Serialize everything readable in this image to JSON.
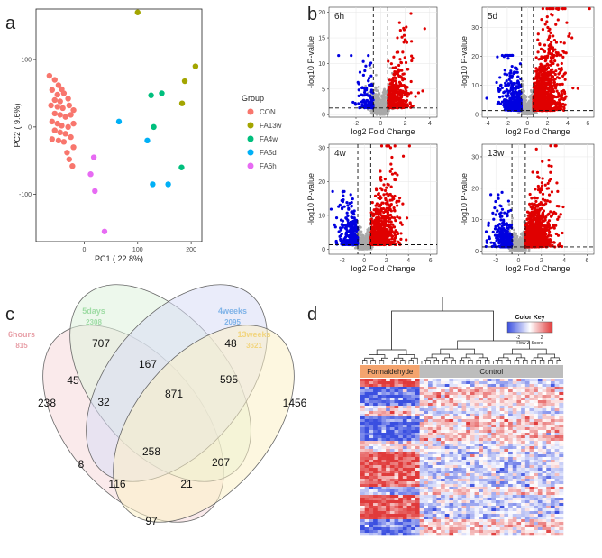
{
  "panel_letters": {
    "a": "a",
    "b": "b",
    "c": "c",
    "d": "d"
  },
  "chart_data": [
    {
      "type": "scatter",
      "panel": "a",
      "xlabel": "PC1 ( 22.8%)",
      "ylabel": "PC2 ( 9.6%)",
      "xlim": [
        -90,
        220
      ],
      "ylim": [
        -170,
        175
      ],
      "xticks": [
        "0",
        "100",
        "200"
      ],
      "xtick_values": [
        0,
        100,
        200
      ],
      "yticks": [
        "100",
        "0",
        "-100"
      ],
      "ytick_values": [
        100,
        0,
        -100
      ],
      "legend_title": "Group",
      "series": [
        {
          "name": "CON",
          "color": "#F8766D",
          "points": [
            [
              -65,
              76
            ],
            [
              -55,
              70
            ],
            [
              -48,
              62
            ],
            [
              -60,
              55
            ],
            [
              -42,
              56
            ],
            [
              -50,
              48
            ],
            [
              -38,
              50
            ],
            [
              -55,
              40
            ],
            [
              -45,
              38
            ],
            [
              -30,
              42
            ],
            [
              -62,
              32
            ],
            [
              -50,
              30
            ],
            [
              -40,
              28
            ],
            [
              -28,
              32
            ],
            [
              -20,
              25
            ],
            [
              -55,
              20
            ],
            [
              -45,
              18
            ],
            [
              -35,
              15
            ],
            [
              -25,
              18
            ],
            [
              -60,
              8
            ],
            [
              -50,
              5
            ],
            [
              -42,
              2
            ],
            [
              -30,
              0
            ],
            [
              -20,
              5
            ],
            [
              -55,
              -5
            ],
            [
              -45,
              -8
            ],
            [
              -35,
              -10
            ],
            [
              -60,
              -18
            ],
            [
              -48,
              -20
            ],
            [
              -38,
              -22
            ],
            [
              -25,
              -15
            ],
            [
              -20,
              -30
            ],
            [
              -32,
              -38
            ],
            [
              -28,
              -48
            ],
            [
              -22,
              -58
            ]
          ]
        },
        {
          "name": "FA13w",
          "color": "#A3A500",
          "points": [
            [
              100,
              170
            ],
            [
              208,
              90
            ],
            [
              188,
              68
            ],
            [
              183,
              35
            ]
          ]
        },
        {
          "name": "FA4w",
          "color": "#00BF7D",
          "points": [
            [
              125,
              47
            ],
            [
              145,
              50
            ],
            [
              130,
              0
            ],
            [
              182,
              -60
            ]
          ]
        },
        {
          "name": "FA5d",
          "color": "#00B0F6",
          "points": [
            [
              65,
              8
            ],
            [
              118,
              -20
            ],
            [
              128,
              -85
            ],
            [
              157,
              -85
            ]
          ]
        },
        {
          "name": "FA6h",
          "color": "#E76BF3",
          "points": [
            [
              18,
              -45
            ],
            [
              12,
              -70
            ],
            [
              20,
              -95
            ],
            [
              38,
              -155
            ]
          ]
        }
      ]
    },
    {
      "type": "scatter",
      "panel": "b",
      "title": "6h",
      "xlabel": "log2 Fold Change",
      "ylabel": "-log10 P-value",
      "xlim": [
        -4.2,
        4.6
      ],
      "ylim": [
        -0.5,
        21
      ],
      "xticks": [
        "-2",
        "0",
        "2",
        "4"
      ],
      "xtick_values": [
        -2,
        0,
        2,
        4
      ],
      "yticks": [
        "0",
        "5",
        "10",
        "15",
        "20"
      ],
      "ytick_values": [
        0,
        5,
        10,
        15,
        20
      ],
      "fc_cutoffs": [
        -0.585,
        0.585
      ],
      "p_cutoff": 1.3,
      "down_color": "#0000E0",
      "up_color": "#E00000",
      "ns_color": "#A9A9A9"
    },
    {
      "type": "scatter",
      "panel": "b",
      "title": "5d",
      "xlabel": "log2 Fold Change",
      "ylabel": "-log10 P-value",
      "xlim": [
        -4.5,
        6.6
      ],
      "ylim": [
        -1,
        37
      ],
      "xticks": [
        "-4",
        "-2",
        "0",
        "2",
        "4",
        "6"
      ],
      "xtick_values": [
        -4,
        -2,
        0,
        2,
        4,
        6
      ],
      "yticks": [
        "0",
        "10",
        "20",
        "30"
      ],
      "ytick_values": [
        0,
        10,
        20,
        30
      ],
      "fc_cutoffs": [
        -0.585,
        0.585
      ],
      "p_cutoff": 1.3,
      "down_color": "#0000E0",
      "up_color": "#E00000",
      "ns_color": "#A9A9A9"
    },
    {
      "type": "scatter",
      "panel": "b",
      "title": "4w",
      "xlabel": "log2 Fold Change",
      "ylabel": "-log10 P-value",
      "xlim": [
        -3.2,
        6.6
      ],
      "ylim": [
        -1.5,
        31
      ],
      "xticks": [
        "-2",
        "0",
        "2",
        "4",
        "6"
      ],
      "xtick_values": [
        -2,
        0,
        2,
        4,
        6
      ],
      "yticks": [
        "0",
        "10",
        "20",
        "30"
      ],
      "ytick_values": [
        0,
        10,
        20,
        30
      ],
      "fc_cutoffs": [
        -0.585,
        0.585
      ],
      "p_cutoff": 1.3,
      "down_color": "#0000E0",
      "up_color": "#E00000",
      "ns_color": "#A9A9A9"
    },
    {
      "type": "scatter",
      "panel": "b",
      "title": "13w",
      "xlabel": "log2 Fold Change",
      "ylabel": "-log10 P-value",
      "xlim": [
        -3.2,
        6.6
      ],
      "ylim": [
        -1,
        34
      ],
      "xticks": [
        "-2",
        "0",
        "2",
        "4",
        "6"
      ],
      "xtick_values": [
        -2,
        0,
        2,
        4,
        6
      ],
      "yticks": [
        "0",
        "10",
        "20",
        "30"
      ],
      "ytick_values": [
        0,
        10,
        20,
        30
      ],
      "fc_cutoffs": [
        -0.585,
        0.585
      ],
      "p_cutoff": 1.3,
      "down_color": "#0000E0",
      "up_color": "#E00000",
      "ns_color": "#A9A9A9"
    },
    {
      "type": "venn",
      "panel": "c",
      "sets": [
        {
          "name": "6hours",
          "total": "815",
          "color": "#E8A0A8",
          "fill": "#F6D9DB"
        },
        {
          "name": "5days",
          "total": "2308",
          "color": "#9FDCA5",
          "fill": "#DFF2DC"
        },
        {
          "name": "4weeks",
          "total": "2095",
          "color": "#7FB3E8",
          "fill": "#D8DDF6"
        },
        {
          "name": "13weeks",
          "total": "3621",
          "color": "#F2D57E",
          "fill": "#FBF0C6"
        }
      ],
      "regions": [
        "707",
        "48",
        "238",
        "45",
        "167",
        "595",
        "1456",
        "32",
        "871",
        "258",
        "8",
        "207",
        "116",
        "21",
        "97"
      ]
    },
    {
      "type": "heatmap",
      "panel": "d",
      "color_key_title": "Color Key",
      "color_key_ticks": [
        "-2",
        "2"
      ],
      "color_key_label": "Row Z-Score",
      "groups": [
        {
          "name": "Formaldehyde",
          "color": "#F4A46E",
          "columns": 14
        },
        {
          "name": "Control",
          "color": "#BDBDBD",
          "columns": 34
        }
      ],
      "low_color": "#3A4FE0",
      "mid_color": "#FFFFFF",
      "high_color": "#E03A3A"
    }
  ]
}
